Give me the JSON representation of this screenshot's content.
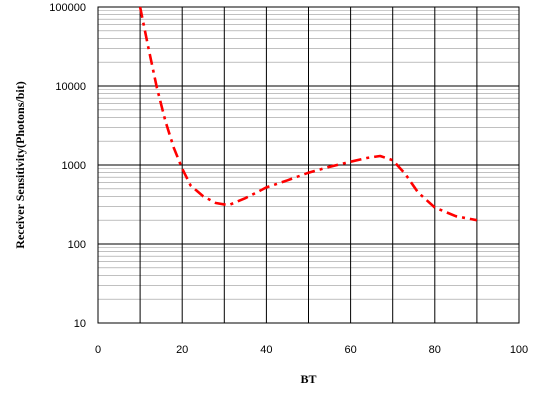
{
  "chart_data": {
    "type": "line",
    "xlabel": "BT",
    "ylabel": "Receiver Sensitivity(Photons/bit)",
    "xlim": [
      0,
      100
    ],
    "ylim": [
      10,
      100000
    ],
    "yscale": "log",
    "x_ticks": [
      0,
      20,
      40,
      60,
      80,
      100
    ],
    "y_ticks": [
      10,
      100,
      1000,
      10000,
      100000
    ],
    "x_tick_labels": [
      "0",
      "20",
      "40",
      "60",
      "80",
      "100"
    ],
    "y_tick_labels": [
      "10",
      "100",
      "1000",
      "10000",
      "100000"
    ],
    "grid": true,
    "series": [
      {
        "color": "#ff0000",
        "line_style": "dash-dot",
        "x": [
          10,
          12,
          14,
          16,
          18,
          20,
          22,
          25,
          28,
          31,
          35,
          40,
          45,
          50,
          55,
          60,
          64,
          67,
          70,
          73,
          76,
          80,
          85,
          90
        ],
        "y": [
          100000,
          30000,
          9500,
          3600,
          1650,
          900,
          550,
          400,
          330,
          310,
          380,
          520,
          640,
          800,
          950,
          1100,
          1230,
          1300,
          1150,
          770,
          450,
          290,
          225,
          200
        ]
      }
    ]
  }
}
